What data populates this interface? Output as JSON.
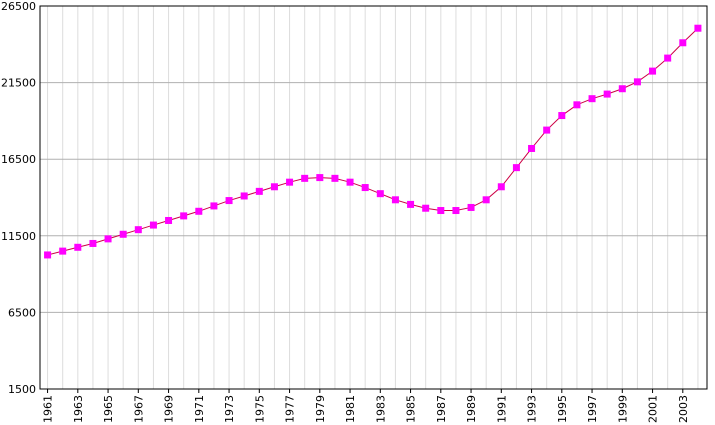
{
  "chart_data": {
    "type": "line",
    "title": "",
    "xlabel": "",
    "ylabel": "",
    "x": [
      1961,
      1962,
      1963,
      1964,
      1965,
      1966,
      1967,
      1968,
      1969,
      1970,
      1971,
      1972,
      1973,
      1974,
      1975,
      1976,
      1977,
      1978,
      1979,
      1980,
      1981,
      1982,
      1983,
      1984,
      1985,
      1986,
      1987,
      1988,
      1989,
      1990,
      1991,
      1992,
      1993,
      1994,
      1995,
      1996,
      1997,
      1998,
      1999,
      2000,
      2001,
      2002,
      2003,
      2004
    ],
    "series": [
      {
        "name": "",
        "color": "#ff00ff",
        "line_color": "#cc0044",
        "values": [
          10250,
          10500,
          10750,
          11000,
          11300,
          11600,
          11900,
          12200,
          12500,
          12800,
          13100,
          13450,
          13800,
          14100,
          14400,
          14700,
          15000,
          15250,
          15300,
          15250,
          15000,
          14650,
          14250,
          13850,
          13550,
          13300,
          13150,
          13150,
          13350,
          13850,
          14700,
          15950,
          17200,
          18400,
          19350,
          20050,
          20450,
          20750,
          21100,
          21550,
          22250,
          23100,
          24100,
          25050
        ]
      }
    ],
    "xlim": [
      1960.5,
      2004.6
    ],
    "ylim": [
      1500,
      26500
    ],
    "y_ticks": [
      "1500",
      "6500",
      "11500",
      "16500",
      "21500",
      "26500"
    ],
    "x_tick_labels": [
      "1961",
      "1963",
      "1965",
      "1967",
      "1969",
      "1971",
      "1973",
      "1975",
      "1977",
      "1979",
      "1981",
      "1983",
      "1985",
      "1987",
      "1989",
      "1991",
      "1993",
      "1995",
      "1997",
      "1999",
      "2001",
      "2003"
    ],
    "grid": true,
    "legend": "none"
  }
}
